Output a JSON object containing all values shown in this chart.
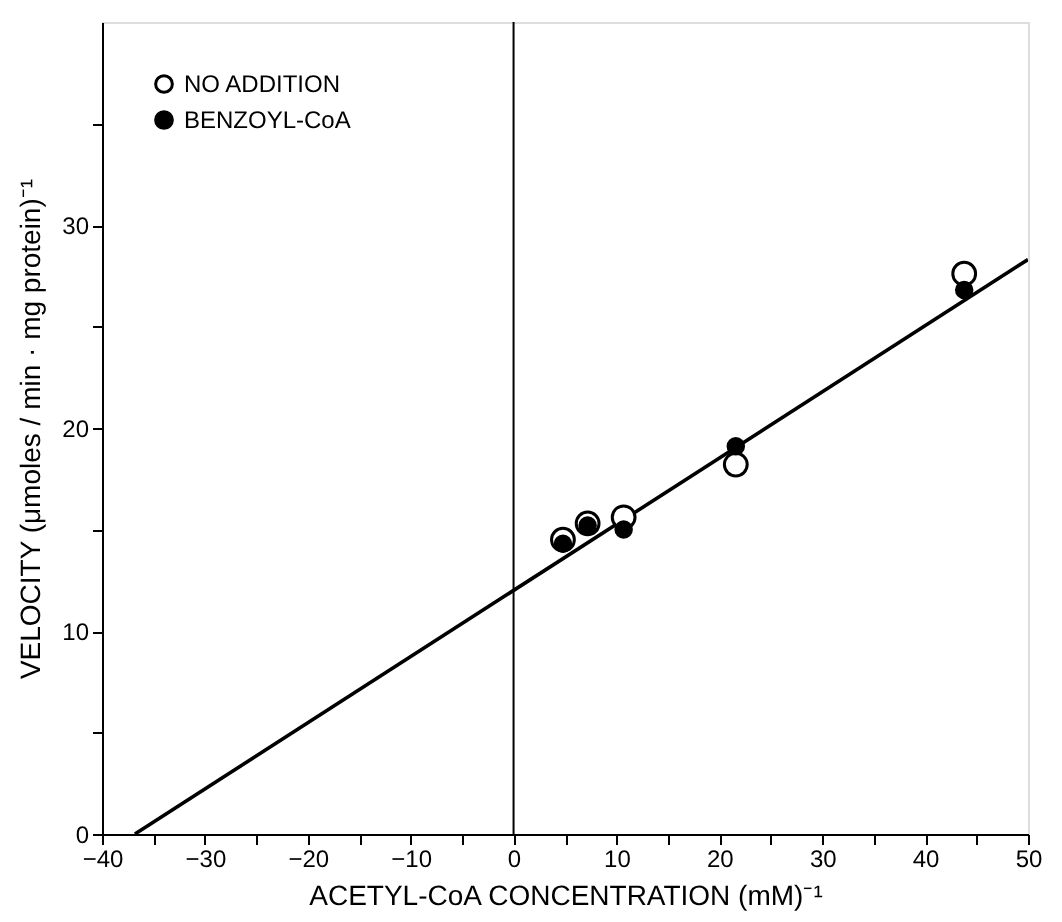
{
  "chart_data": {
    "type": "scatter",
    "xlabel": "ACETYL-CoA CONCENTRATION (mM)⁻¹",
    "ylabel": "VELOCITY (μmoles / min · mg protein)⁻¹",
    "xlim": [
      -40,
      50
    ],
    "ylim": [
      0,
      40
    ],
    "xticks": [
      -40,
      {
        "value": -35,
        "label": null
      },
      -30,
      {
        "value": -25,
        "label": null
      },
      -20,
      {
        "value": -15,
        "label": null
      },
      -10,
      {
        "value": -5,
        "label": null
      },
      0,
      {
        "value": 5,
        "label": null
      },
      10,
      {
        "value": 15,
        "label": null
      },
      20,
      {
        "value": 25,
        "label": null
      },
      30,
      {
        "value": 35,
        "label": null
      },
      40,
      {
        "value": 45,
        "label": null
      },
      50
    ],
    "yticks": [
      0,
      {
        "value": 5,
        "label": null
      },
      10,
      {
        "value": 15,
        "label": null
      },
      20,
      {
        "value": 25,
        "label": null
      },
      30,
      {
        "value": 35,
        "label": null
      }
    ],
    "series": [
      {
        "name": "NO ADDITION",
        "color": "#ffffff",
        "x": [
          4.8,
          7.2,
          10.7,
          21.6,
          43.8
        ],
        "values": [
          14.5,
          15.3,
          15.6,
          18.2,
          27.6
        ]
      },
      {
        "name": "BENZOYL-CoA",
        "color": "#000000",
        "x": [
          4.8,
          7.2,
          10.7,
          21.6,
          43.8
        ],
        "values": [
          14.3,
          15.2,
          15.0,
          19.1,
          26.8
        ]
      },
      {
        "type": "line",
        "marker": "none",
        "color": "#000000",
        "x": [
          -36.8,
          50
        ],
        "values": [
          0,
          28.3
        ]
      }
    ],
    "ref_lines": [
      {
        "axis": "x",
        "value": 0,
        "color": "#000000"
      }
    ],
    "marker": "circle",
    "line_style": "solid",
    "grid": false,
    "legend": "top left"
  }
}
